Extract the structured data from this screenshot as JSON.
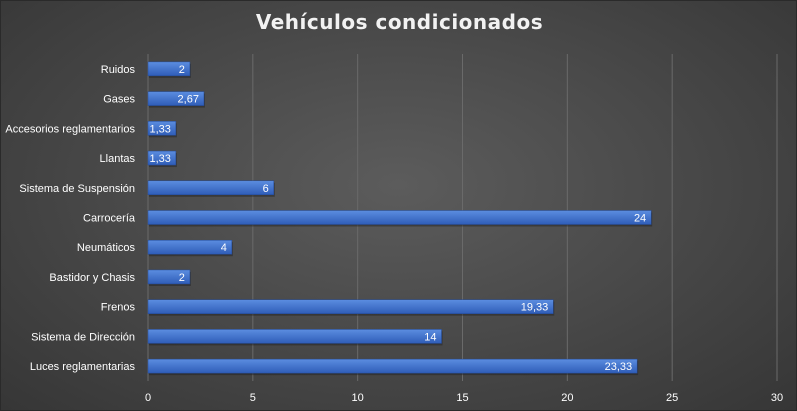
{
  "chart_data": {
    "type": "bar",
    "orientation": "horizontal",
    "title": "Vehículos condicionados",
    "categories": [
      "Ruidos",
      "Gases",
      "Accesorios reglamentarios",
      "Llantas",
      "Sistema de Suspensión",
      "Carrocería",
      "Neumáticos",
      "Bastidor y Chasis",
      "Frenos",
      "Sistema de Dirección",
      "Luces reglamentarias"
    ],
    "values": [
      2,
      2.67,
      1.33,
      1.33,
      6,
      24,
      4,
      2,
      19.33,
      14,
      23.33
    ],
    "data_labels": [
      "2",
      "2,67",
      "1,33",
      "1,33",
      "6",
      "24",
      "4",
      "2",
      "19,33",
      "14",
      "23,33"
    ],
    "x_ticks": [
      "0",
      "5",
      "10",
      "15",
      "20",
      "25",
      "30"
    ],
    "xlim": [
      0,
      30
    ],
    "xlabel": "",
    "ylabel": "",
    "grid": "vertical",
    "legend": "none",
    "colors": {
      "bar_light": "#5b8de0",
      "bar_dark": "#2f5db8",
      "grid": "#6a6a6a",
      "text": "#ffffff",
      "title": "#f2f2f2"
    }
  }
}
